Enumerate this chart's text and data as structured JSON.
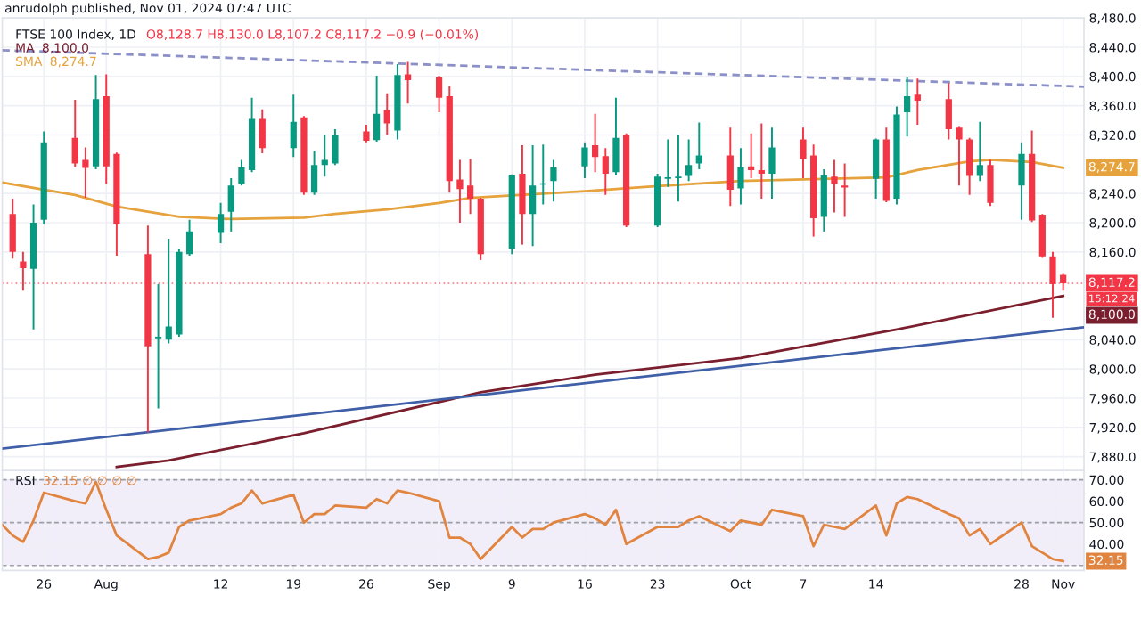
{
  "chart_data": [
    {
      "type": "candlestick",
      "title": "FTSE 100 Index, 1D",
      "annotations": [
        "anrudolph published, Nov 01, 2024 07:47 UTC",
        "O8,128.7 H8,130.0 L8,107.2 C8,117.2 −0.9 (−0.01%)",
        "15:12:24",
        "8,100.0",
        "8,274.7"
      ],
      "x": [
        "2024-07-23",
        "2024-07-24",
        "2024-07-25",
        "2024-07-26",
        "2024-07-29",
        "2024-07-30",
        "2024-07-31",
        "2024-08-01",
        "2024-08-02",
        "2024-08-05",
        "2024-08-06",
        "2024-08-07",
        "2024-08-08",
        "2024-08-09",
        "2024-08-12",
        "2024-08-13",
        "2024-08-14",
        "2024-08-15",
        "2024-08-16",
        "2024-08-19",
        "2024-08-20",
        "2024-08-21",
        "2024-08-22",
        "2024-08-23",
        "2024-08-26",
        "2024-08-27",
        "2024-08-28",
        "2024-08-29",
        "2024-08-30",
        "2024-09-02",
        "2024-09-03",
        "2024-09-04",
        "2024-09-05",
        "2024-09-06",
        "2024-09-09",
        "2024-09-10",
        "2024-09-11",
        "2024-09-12",
        "2024-09-13",
        "2024-09-16",
        "2024-09-17",
        "2024-09-18",
        "2024-09-19",
        "2024-09-20",
        "2024-09-23",
        "2024-09-24",
        "2024-09-25",
        "2024-09-26",
        "2024-09-27",
        "2024-09-30",
        "2024-10-01",
        "2024-10-02",
        "2024-10-03",
        "2024-10-04",
        "2024-10-07",
        "2024-10-08",
        "2024-10-09",
        "2024-10-10",
        "2024-10-11",
        "2024-10-14",
        "2024-10-15",
        "2024-10-16",
        "2024-10-17",
        "2024-10-18",
        "2024-10-21",
        "2024-10-22",
        "2024-10-23",
        "2024-10-24",
        "2024-10-25",
        "2024-10-28",
        "2024-10-29",
        "2024-10-30",
        "2024-10-31",
        "2024-11-01"
      ],
      "ohlc": [
        [
          8212,
          8233,
          8151,
          8160
        ],
        [
          8147,
          8160,
          8107,
          8138
        ],
        [
          8137,
          8225,
          8054,
          8200
        ],
        [
          8204,
          8325,
          8198,
          8310
        ],
        [
          8316,
          8368,
          8276,
          8281
        ],
        [
          8286,
          8303,
          8234,
          8275
        ],
        [
          8277,
          8402,
          8273,
          8369
        ],
        [
          8373,
          8403,
          8253,
          8277
        ],
        [
          8294,
          8296,
          8155,
          8198
        ],
        [
          8157,
          8196,
          7913,
          8031
        ],
        [
          8042,
          8116,
          7946,
          8044
        ],
        [
          8040,
          8178,
          8035,
          8058
        ],
        [
          8047,
          8164,
          8044,
          8160
        ],
        [
          8157,
          8204,
          8155,
          8188
        ],
        [
          8186,
          8227,
          8172,
          8212
        ],
        [
          8215,
          8261,
          8188,
          8251
        ],
        [
          8253,
          8286,
          8251,
          8276
        ],
        [
          8272,
          8371,
          8269,
          8342
        ],
        [
          8342,
          8355,
          8295,
          8302
        ],
        [
          8302,
          8375,
          8290,
          8338
        ],
        [
          8344,
          8346,
          8238,
          8241
        ],
        [
          8241,
          8298,
          8238,
          8279
        ],
        [
          8279,
          8320,
          8263,
          8286
        ],
        [
          8281,
          8328,
          8279,
          8320
        ],
        [
          8325,
          8334,
          8310,
          8312
        ],
        [
          8313,
          8401,
          8311,
          8349
        ],
        [
          8354,
          8377,
          8320,
          8336
        ],
        [
          8326,
          8417,
          8314,
          8402
        ],
        [
          8403,
          8420,
          8363,
          8395
        ],
        [
          8399,
          8401,
          8351,
          8371
        ],
        [
          8373,
          8387,
          8241,
          8257
        ],
        [
          8259,
          8286,
          8200,
          8246
        ],
        [
          8251,
          8287,
          8212,
          8233
        ],
        [
          8233,
          8234,
          8149,
          8157
        ],
        [
          8164,
          8266,
          8157,
          8265
        ],
        [
          8267,
          8306,
          8170,
          8212
        ],
        [
          8212,
          8306,
          8168,
          8251
        ],
        [
          8252,
          8307,
          8225,
          8254
        ],
        [
          8257,
          8286,
          8229,
          8276
        ],
        [
          8277,
          8310,
          8261,
          8303
        ],
        [
          8306,
          8349,
          8269,
          8290
        ],
        [
          8291,
          8302,
          8238,
          8267
        ],
        [
          8269,
          8371,
          8265,
          8316
        ],
        [
          8320,
          8322,
          8194,
          8196
        ],
        [
          8196,
          8267,
          8194,
          8263
        ],
        [
          8260,
          8314,
          8249,
          8262
        ],
        [
          8261,
          8320,
          8229,
          8263
        ],
        [
          8264,
          8314,
          8257,
          8279
        ],
        [
          8281,
          8337,
          8273,
          8292
        ],
        [
          8292,
          8330,
          8223,
          8245
        ],
        [
          8247,
          8302,
          8225,
          8276
        ],
        [
          8277,
          8322,
          8261,
          8272
        ],
        [
          8272,
          8336,
          8233,
          8267
        ],
        [
          8267,
          8330,
          8233,
          8303
        ],
        [
          8314,
          8330,
          8261,
          8287
        ],
        [
          8292,
          8307,
          8181,
          8206
        ],
        [
          8208,
          8273,
          8188,
          8265
        ],
        [
          8263,
          8286,
          8214,
          8253
        ],
        [
          8251,
          8281,
          8208,
          8248
        ],
        [
          8260,
          8315,
          8233,
          8314
        ],
        [
          8314,
          8330,
          8228,
          8230
        ],
        [
          8233,
          8359,
          8225,
          8348
        ],
        [
          8351,
          8399,
          8318,
          8373
        ],
        [
          8375,
          8397,
          8334,
          8367
        ],
        [
          8369,
          8391,
          8314,
          8328
        ],
        [
          8330,
          8331,
          8251,
          8314
        ],
        [
          8314,
          8316,
          8238,
          8264
        ],
        [
          8264,
          8338,
          8257,
          8279
        ],
        [
          8279,
          8286,
          8223,
          8227
        ],
        [
          8251,
          8310,
          8204,
          8294
        ],
        [
          8294,
          8326,
          8201,
          8203
        ],
        [
          8211,
          8212,
          8152,
          8154
        ],
        [
          8154,
          8160,
          8070,
          8116
        ],
        [
          8128.7,
          8130.0,
          8107.2,
          8117.2
        ]
      ],
      "colors": [
        "#f23645",
        "#f23645",
        "#089981",
        "#089981",
        "#f23645",
        "#f23645",
        "#089981",
        "#f23645",
        "#f23645",
        "#f23645",
        "#089981",
        "#089981",
        "#089981",
        "#089981",
        "#089981",
        "#089981",
        "#089981",
        "#089981",
        "#f23645",
        "#089981",
        "#f23645",
        "#089981",
        "#089981",
        "#089981",
        "#f23645",
        "#089981",
        "#f23645",
        "#089981",
        "#f23645",
        "#f23645",
        "#f23645",
        "#f23645",
        "#f23645",
        "#f23645",
        "#089981",
        "#f23645",
        "#089981",
        "#089981",
        "#089981",
        "#089981",
        "#f23645",
        "#f23645",
        "#089981",
        "#f23645",
        "#089981",
        "#089981",
        "#089981",
        "#089981",
        "#089981",
        "#f23645",
        "#089981",
        "#f23645",
        "#f23645",
        "#089981",
        "#f23645",
        "#f23645",
        "#089981",
        "#f23645",
        "#f23645",
        "#089981",
        "#f23645",
        "#089981",
        "#089981",
        "#f23645",
        "#f23645",
        "#f23645",
        "#f23645",
        "#089981",
        "#f23645",
        "#089981",
        "#f23645",
        "#f23645",
        "#f23645",
        "#f23645"
      ],
      "series": [
        {
          "name": "MA",
          "type": "line",
          "color": "#7b1f2e",
          "x": [
            "2024-08-02",
            "2024-08-07",
            "2024-08-20",
            "2024-09-06",
            "2024-09-17",
            "2024-10-01",
            "2024-10-16",
            "2024-11-01"
          ],
          "values": [
            7866,
            7875,
            7912,
            7968,
            7992,
            8015,
            8054,
            8100
          ]
        },
        {
          "name": "SMA",
          "type": "line",
          "color": "#e6a23c",
          "x": [
            "2024-07-22",
            "2024-07-29",
            "2024-08-02",
            "2024-08-08",
            "2024-08-13",
            "2024-08-20",
            "2024-08-23",
            "2024-08-28",
            "2024-09-02",
            "2024-09-05",
            "2024-09-16",
            "2024-09-23",
            "2024-10-01",
            "2024-10-15",
            "2024-10-18",
            "2024-10-23",
            "2024-10-25",
            "2024-10-29",
            "2024-11-01"
          ],
          "values": [
            8255,
            8238,
            8222,
            8208,
            8205,
            8207,
            8212,
            8218,
            8227,
            8234,
            8243,
            8250,
            8257,
            8262,
            8272,
            8284,
            8286,
            8283,
            8275
          ]
        },
        {
          "type": "line",
          "color": "#3f5fa8",
          "x": [
            "2024-07-22",
            "2024-11-03"
          ],
          "values": [
            7891,
            8057
          ]
        },
        {
          "type": "line",
          "color": "#8c90c8",
          "line_style": "dashed",
          "x": [
            "2024-07-22",
            "2024-11-03"
          ],
          "values": [
            8436,
            8386
          ]
        }
      ],
      "ref_lines": [
        {
          "axis": "y",
          "value": 8117.2,
          "label": "8,117.2",
          "color": "#f23645",
          "line_style": "dotted"
        }
      ],
      "xlim": [
        "2024-07-22",
        "2024-11-03"
      ],
      "xticks": [
        {
          "value": "2024-07-26",
          "label": null
        },
        {
          "value": "2024-08-01",
          "label": null
        },
        {
          "value": "2024-08-12",
          "label": null
        },
        {
          "value": "2024-08-19",
          "label": null
        },
        {
          "value": "2024-08-26",
          "label": null
        },
        {
          "value": "2024-09-02",
          "label": null
        },
        {
          "value": "2024-09-09",
          "label": null
        },
        {
          "value": "2024-09-16",
          "label": null
        },
        {
          "value": "2024-09-23",
          "label": null
        },
        {
          "value": "2024-10-01",
          "label": null
        },
        {
          "value": "2024-10-07",
          "label": null
        },
        {
          "value": "2024-10-14",
          "label": null
        },
        {
          "value": "2024-10-28",
          "label": null
        },
        {
          "value": "2024-11-01",
          "label": null
        }
      ],
      "ylim": [
        7861,
        8480
      ],
      "yticks": [
        {
          "value": 8480,
          "label": "8,480.0"
        },
        {
          "value": 8440,
          "label": "8,440.0"
        },
        {
          "value": 8400,
          "label": "8,400.0"
        },
        {
          "value": 8360,
          "label": "8,360.0"
        },
        {
          "value": 8320,
          "label": "8,320.0"
        },
        {
          "value": 8240,
          "label": "8,240.0"
        },
        {
          "value": 8200,
          "label": "8,200.0"
        },
        {
          "value": 8160,
          "label": "8,160.0"
        },
        {
          "value": 8040,
          "label": "8,040.0"
        },
        {
          "value": 8000,
          "label": "8,000.0"
        },
        {
          "value": 7960,
          "label": "7,960.0"
        },
        {
          "value": 7920,
          "label": "7,920.0"
        },
        {
          "value": 7880,
          "label": "7,880.0"
        }
      ],
      "grid": true,
      "tick_labels": "y"
    },
    {
      "type": "line",
      "title": "RSI",
      "annotations": [
        "32.15 ∅ ∅ ∅ ∅",
        "32.15"
      ],
      "series": [
        {
          "color": "#e0843f",
          "x": [
            "2024-07-22",
            "2024-07-23",
            "2024-07-24",
            "2024-07-25",
            "2024-07-26",
            "2024-07-29",
            "2024-07-30",
            "2024-07-31",
            "2024-08-01",
            "2024-08-02",
            "2024-08-05",
            "2024-08-06",
            "2024-08-07",
            "2024-08-08",
            "2024-08-09",
            "2024-08-12",
            "2024-08-13",
            "2024-08-14",
            "2024-08-15",
            "2024-08-16",
            "2024-08-19",
            "2024-08-20",
            "2024-08-21",
            "2024-08-22",
            "2024-08-23",
            "2024-08-26",
            "2024-08-27",
            "2024-08-28",
            "2024-08-29",
            "2024-08-30",
            "2024-09-02",
            "2024-09-03",
            "2024-09-04",
            "2024-09-05",
            "2024-09-06",
            "2024-09-09",
            "2024-09-10",
            "2024-09-11",
            "2024-09-12",
            "2024-09-13",
            "2024-09-16",
            "2024-09-17",
            "2024-09-18",
            "2024-09-19",
            "2024-09-20",
            "2024-09-23",
            "2024-09-24",
            "2024-09-25",
            "2024-09-26",
            "2024-09-27",
            "2024-09-30",
            "2024-10-01",
            "2024-10-02",
            "2024-10-03",
            "2024-10-04",
            "2024-10-07",
            "2024-10-08",
            "2024-10-09",
            "2024-10-10",
            "2024-10-11",
            "2024-10-14",
            "2024-10-15",
            "2024-10-16",
            "2024-10-17",
            "2024-10-18",
            "2024-10-21",
            "2024-10-22",
            "2024-10-23",
            "2024-10-24",
            "2024-10-25",
            "2024-10-28",
            "2024-10-29",
            "2024-10-30",
            "2024-10-31",
            "2024-11-01"
          ],
          "values": [
            49,
            44,
            41,
            51,
            64,
            60,
            59,
            69,
            56,
            44,
            33,
            34,
            36,
            48,
            51,
            54,
            57,
            59,
            65,
            59,
            63,
            50,
            54,
            54,
            58,
            57,
            61,
            59,
            65,
            64,
            60,
            43,
            43,
            40,
            33,
            48,
            43,
            47,
            47,
            50,
            54,
            52,
            49,
            56,
            40,
            48,
            48,
            48,
            51,
            53,
            46,
            51,
            50,
            49,
            56,
            53,
            39,
            49,
            48,
            47,
            58,
            44,
            59,
            62,
            61,
            54,
            52,
            44,
            47,
            40,
            50,
            39,
            36,
            33,
            32
          ]
        }
      ],
      "bands": [
        {
          "axis": "y",
          "from": 30,
          "to": 70,
          "color": "#7e57c2"
        }
      ],
      "ref_lines": [
        {
          "axis": "y",
          "value": 70,
          "color": "#787b86",
          "line_style": "dashed"
        },
        {
          "axis": "y",
          "value": 50,
          "color": "#787b86",
          "line_style": "dashed"
        },
        {
          "axis": "y",
          "value": 30,
          "color": "#787b86",
          "line_style": "dashed"
        }
      ],
      "xlim": [
        "2024-07-22",
        "2024-11-03"
      ],
      "xticks": [
        {
          "value": "2024-07-26",
          "label": "26"
        },
        {
          "value": "2024-08-01",
          "label": "Aug"
        },
        {
          "value": "2024-08-12",
          "label": "12"
        },
        {
          "value": "2024-08-19",
          "label": "19"
        },
        {
          "value": "2024-08-26",
          "label": "26"
        },
        {
          "value": "2024-09-02",
          "label": "Sep"
        },
        {
          "value": "2024-09-09",
          "label": "9"
        },
        {
          "value": "2024-09-16",
          "label": "16"
        },
        {
          "value": "2024-09-23",
          "label": "23"
        },
        {
          "value": "2024-10-01",
          "label": "Oct"
        },
        {
          "value": "2024-10-07",
          "label": "7"
        },
        {
          "value": "2024-10-14",
          "label": "14"
        },
        {
          "value": "2024-10-28",
          "label": "28"
        },
        {
          "value": "2024-11-01",
          "label": "Nov"
        }
      ],
      "ylim": [
        27.7,
        74.3
      ],
      "yticks": [
        {
          "value": 70,
          "label": "70.00"
        },
        {
          "value": 60,
          "label": "60.00"
        },
        {
          "value": 50,
          "label": "50.00"
        },
        {
          "value": 40,
          "label": "40.00"
        }
      ],
      "grid": true
    }
  ]
}
